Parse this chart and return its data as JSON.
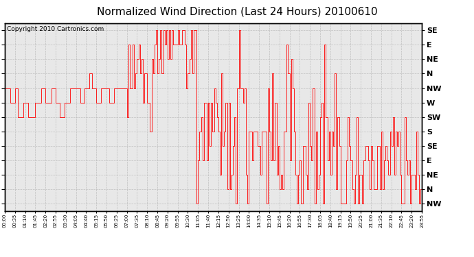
{
  "title": "Normalized Wind Direction (Last 24 Hours) 20100610",
  "copyright": "Copyright 2010 Cartronics.com",
  "line_color": "#ff0000",
  "bg_color": "#ffffff",
  "plot_bg_color": "#e8e8e8",
  "grid_color": "#bbbbbb",
  "title_fontsize": 11,
  "copyright_fontsize": 7,
  "ytick_labels": [
    "SE",
    "E",
    "NE",
    "N",
    "NW",
    "W",
    "SW",
    "S",
    "SE",
    "E",
    "NE",
    "N",
    "NW"
  ],
  "ytick_values": [
    13,
    12,
    11,
    10,
    9,
    8,
    7,
    6,
    5,
    4,
    3,
    2,
    1
  ],
  "ylim": [
    0.5,
    13.5
  ],
  "xtick_labels": [
    "00:00",
    "00:35",
    "01:10",
    "01:45",
    "02:20",
    "02:55",
    "03:30",
    "04:05",
    "04:40",
    "05:15",
    "05:50",
    "06:25",
    "07:00",
    "07:35",
    "08:10",
    "08:45",
    "09:20",
    "09:55",
    "10:30",
    "11:05",
    "11:40",
    "12:15",
    "12:50",
    "13:25",
    "14:00",
    "14:35",
    "15:10",
    "15:45",
    "16:20",
    "16:55",
    "17:30",
    "18:05",
    "18:40",
    "19:15",
    "19:50",
    "20:25",
    "21:00",
    "21:35",
    "22:10",
    "22:45",
    "23:20",
    "23:55"
  ]
}
